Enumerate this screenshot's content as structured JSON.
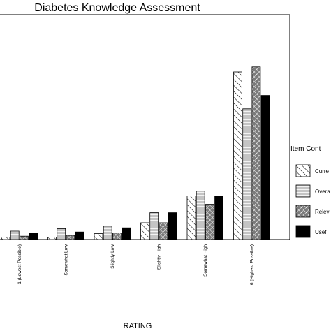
{
  "chart_data": {
    "type": "bar",
    "title": "Diabetes Knowledge Assessment",
    "xlabel": "RATING",
    "ylabel": "",
    "legend_title": "Item Cont",
    "legend_position": "right",
    "grid": false,
    "ylim": [
      0,
      100
    ],
    "categories": [
      "1 (Lowest Possible)",
      "Somewhat Low",
      "Slightly Low",
      "Slightly High",
      "Somewhat High",
      "6 (Highest Possible)"
    ],
    "series": [
      {
        "name": "Curre",
        "pattern": "hatch",
        "color": "#ffffff",
        "values": [
          1.5,
          1.5,
          3.5,
          10,
          26,
          100
        ]
      },
      {
        "name": "Overa",
        "pattern": "stripes",
        "color": "#bdbdbd",
        "values": [
          5,
          6.5,
          8,
          16,
          29,
          78
        ]
      },
      {
        "name": "Relev",
        "pattern": "crosshatch",
        "color": "#7a7a7a",
        "values": [
          2,
          2.5,
          4,
          10,
          21,
          103
        ]
      },
      {
        "name": "Usef",
        "pattern": "solid",
        "color": "#000000",
        "values": [
          4,
          4.5,
          7,
          16,
          26,
          86
        ]
      }
    ]
  }
}
